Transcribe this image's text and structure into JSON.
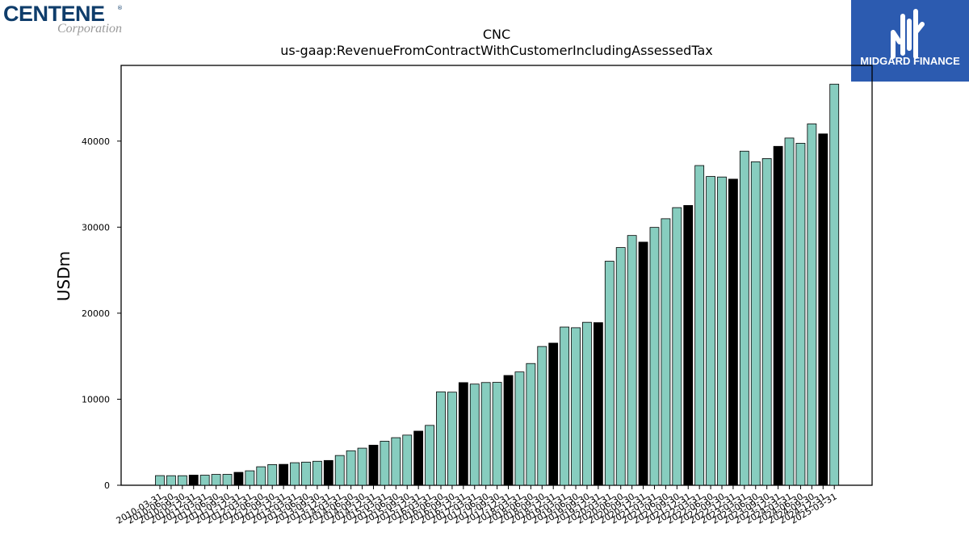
{
  "logos": {
    "left": {
      "word": "CENTENE",
      "reg": "®",
      "sub": "Corporation"
    },
    "right": {
      "text": "MIDGARD FINANCE"
    }
  },
  "colors": {
    "bar_default": "#87cdbf",
    "bar_highlight": "#000000",
    "edge": "#000000",
    "brand_blue": "#2c5bb0",
    "centene_blue": "#0f3d6b"
  },
  "chart_data": {
    "type": "bar",
    "title": "CNC",
    "subtitle": "us-gaap:RevenueFromContractWithCustomerIncludingAssessedTax",
    "xlabel": "",
    "ylabel": "USDm",
    "ylim": [
      0,
      48800
    ],
    "yticks": [
      0,
      10000,
      20000,
      30000,
      40000
    ],
    "grid": false,
    "categories": [
      "2010-03-31",
      "2010-06-30",
      "2010-09-30",
      "2010-12-31",
      "2011-03-31",
      "2011-06-30",
      "2011-09-30",
      "2011-12-31",
      "2012-03-31",
      "2012-06-30",
      "2012-09-30",
      "2012-12-31",
      "2013-03-31",
      "2013-06-30",
      "2013-09-30",
      "2013-12-31",
      "2014-03-31",
      "2014-06-30",
      "2014-09-30",
      "2014-12-31",
      "2015-03-31",
      "2015-06-30",
      "2015-09-30",
      "2015-12-31",
      "2016-03-31",
      "2016-06-30",
      "2016-09-30",
      "2016-12-31",
      "2017-03-31",
      "2017-06-30",
      "2017-09-30",
      "2017-12-31",
      "2018-03-31",
      "2018-06-30",
      "2018-09-30",
      "2018-12-31",
      "2019-03-31",
      "2019-06-30",
      "2019-09-30",
      "2019-12-31",
      "2020-03-31",
      "2020-06-30",
      "2020-09-30",
      "2020-12-31",
      "2021-03-31",
      "2021-06-30",
      "2021-09-30",
      "2021-12-31",
      "2022-03-31",
      "2022-06-30",
      "2022-09-30",
      "2022-12-31",
      "2023-03-31",
      "2023-06-30",
      "2023-09-30",
      "2023-12-31",
      "2024-03-31",
      "2024-06-30",
      "2024-09-30",
      "2024-12-31",
      "2025-03-31"
    ],
    "values": [
      1120,
      1110,
      1110,
      1180,
      1170,
      1260,
      1270,
      1500,
      1680,
      2150,
      2400,
      2430,
      2620,
      2690,
      2790,
      2880,
      3460,
      4010,
      4310,
      4660,
      5120,
      5530,
      5830,
      6290,
      6960,
      10860,
      10820,
      11930,
      11760,
      11940,
      11960,
      12760,
      13170,
      14150,
      16130,
      16520,
      18390,
      18310,
      18940,
      18900,
      26040,
      27630,
      29030,
      28260,
      29970,
      30980,
      32270,
      32520,
      37160,
      35890,
      35830,
      35580,
      38830,
      37600,
      37970,
      39390,
      40360,
      39750,
      42000,
      40840,
      46620
    ],
    "highlight_indices": [
      3,
      7,
      11,
      15,
      19,
      23,
      27,
      31,
      35,
      39,
      43,
      47,
      51,
      55,
      59
    ]
  }
}
